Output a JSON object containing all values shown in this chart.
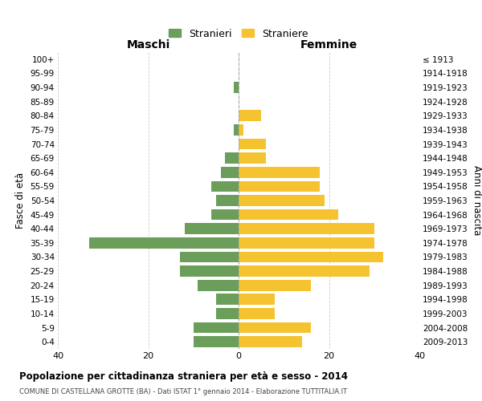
{
  "age_groups": [
    "100+",
    "95-99",
    "90-94",
    "85-89",
    "80-84",
    "75-79",
    "70-74",
    "65-69",
    "60-64",
    "55-59",
    "50-54",
    "45-49",
    "40-44",
    "35-39",
    "30-34",
    "25-29",
    "20-24",
    "15-19",
    "10-14",
    "5-9",
    "0-4"
  ],
  "birth_years": [
    "≤ 1913",
    "1914-1918",
    "1919-1923",
    "1924-1928",
    "1929-1933",
    "1934-1938",
    "1939-1943",
    "1944-1948",
    "1949-1953",
    "1954-1958",
    "1959-1963",
    "1964-1968",
    "1969-1973",
    "1974-1978",
    "1979-1983",
    "1984-1988",
    "1989-1993",
    "1994-1998",
    "1999-2003",
    "2004-2008",
    "2009-2013"
  ],
  "maschi": [
    0,
    0,
    1,
    0,
    0,
    1,
    0,
    3,
    4,
    6,
    5,
    6,
    12,
    33,
    13,
    13,
    9,
    5,
    5,
    10,
    10
  ],
  "femmine": [
    0,
    0,
    0,
    0,
    5,
    1,
    6,
    6,
    18,
    18,
    19,
    22,
    30,
    30,
    32,
    29,
    16,
    8,
    8,
    16,
    14
  ],
  "male_color": "#6a9e5a",
  "female_color": "#f5c330",
  "title": "Popolazione per cittadinanza straniera per età e sesso - 2014",
  "subtitle": "COMUNE DI CASTELLANA GROTTE (BA) - Dati ISTAT 1° gennaio 2014 - Elaborazione TUTTITALIA.IT",
  "xlabel_left": "Maschi",
  "xlabel_right": "Femmine",
  "ylabel_left": "Fasce di età",
  "ylabel_right": "Anni di nascita",
  "legend_male": "Stranieri",
  "legend_female": "Straniere",
  "xlim": 40,
  "background_color": "#ffffff",
  "grid_color": "#cccccc"
}
